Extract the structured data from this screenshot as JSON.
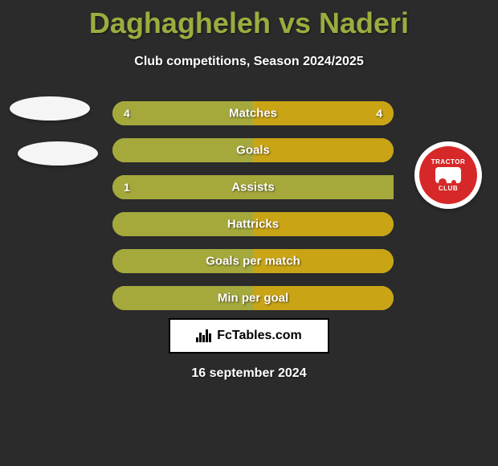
{
  "title": "Daghagheleh vs Naderi",
  "subtitle": "Club competitions, Season 2024/2025",
  "date": "16 september 2024",
  "footer": {
    "brand": "FcTables.com"
  },
  "colors": {
    "background": "#2b2b2b",
    "title_color": "#9aad3e",
    "text_color": "#ffffff",
    "bar_green": "#a5a93c",
    "bar_orange": "#c9a516",
    "ellipse": "#f5f5f5",
    "badge_red": "#d62828"
  },
  "badge": {
    "top_text": "TRACTOR",
    "bottom_text": "CLUB"
  },
  "stats": [
    {
      "label": "Matches",
      "left_value": "4",
      "right_value": "4",
      "left_pct": 50,
      "right_pct": 50,
      "left_color": "#a5a93c",
      "right_color": "#c9a516"
    },
    {
      "label": "Goals",
      "left_value": "",
      "right_value": "",
      "left_pct": 50,
      "right_pct": 50,
      "left_color": "#a5a93c",
      "right_color": "#c9a516"
    },
    {
      "label": "Assists",
      "left_value": "1",
      "right_value": "",
      "left_pct": 100,
      "right_pct": 0,
      "left_color": "#a5a93c",
      "right_color": "#c9a516"
    },
    {
      "label": "Hattricks",
      "left_value": "",
      "right_value": "",
      "left_pct": 50,
      "right_pct": 50,
      "left_color": "#a5a93c",
      "right_color": "#c9a516"
    },
    {
      "label": "Goals per match",
      "left_value": "",
      "right_value": "",
      "left_pct": 50,
      "right_pct": 50,
      "left_color": "#a5a93c",
      "right_color": "#c9a516"
    },
    {
      "label": "Min per goal",
      "left_value": "",
      "right_value": "",
      "left_pct": 50,
      "right_pct": 50,
      "left_color": "#a5a93c",
      "right_color": "#c9a516"
    }
  ]
}
